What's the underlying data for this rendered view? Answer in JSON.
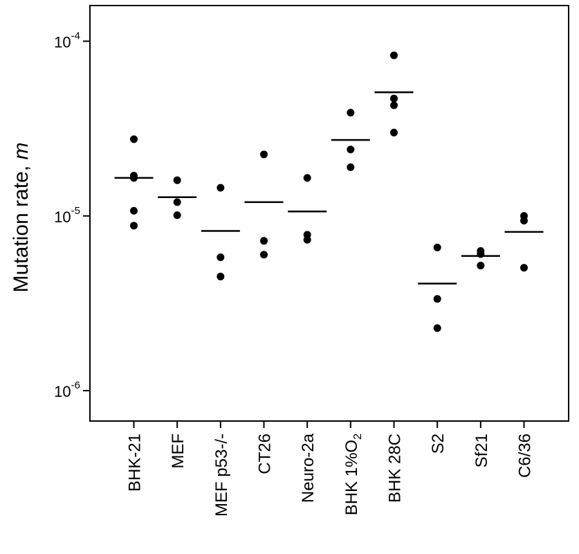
{
  "chart_data": {
    "type": "scatter",
    "yscale": "log",
    "ylim": [
      6.7e-07,
      0.00016
    ],
    "ylabel": {
      "text": "Mutation rate, ",
      "italic_part": "m"
    },
    "y_ticks": [
      {
        "value": 1e-06,
        "base": "10",
        "exp": "-6"
      },
      {
        "value": 1e-05,
        "base": "10",
        "exp": "-5"
      },
      {
        "value": 0.0001,
        "base": "10",
        "exp": "-4"
      }
    ],
    "categories": [
      {
        "label": "BHK-21",
        "points": [
          2.75e-05,
          1.7e-05,
          1.65e-05,
          1.07e-05,
          8.8e-06
        ],
        "mean": 1.65e-05
      },
      {
        "label": "MEF",
        "points": [
          1.6e-05,
          1.2e-05,
          1.01e-05
        ],
        "mean": 1.28e-05
      },
      {
        "label": "MEF p53-/-",
        "points": [
          1.45e-05,
          5.8e-06,
          4.5e-06
        ],
        "mean": 8.2e-06
      },
      {
        "label": "CT26",
        "points": [
          2.25e-05,
          7.2e-06,
          6e-06
        ],
        "mean": 1.2e-05
      },
      {
        "label": "Neuro-2a",
        "points": [
          1.65e-05,
          7.8e-06,
          7.3e-06
        ],
        "mean": 1.06e-05
      },
      {
        "label": "BHK 1%O",
        "label_sub": "2",
        "points": [
          3.9e-05,
          2.4e-05,
          1.9e-05
        ],
        "mean": 2.72e-05
      },
      {
        "label": "BHK 28C",
        "points": [
          8.3e-05,
          4.7e-05,
          4.3e-05,
          3e-05
        ],
        "mean": 5.1e-05
      },
      {
        "label": "S2",
        "points": [
          6.6e-06,
          3.35e-06,
          2.28e-06
        ],
        "mean": 4.1e-06
      },
      {
        "label": "Sf21",
        "points": [
          6.3e-06,
          6.05e-06,
          5.2e-06
        ],
        "mean": 5.9e-06
      },
      {
        "label": "C6/36",
        "points": [
          1e-05,
          9.4e-06,
          5.05e-06
        ],
        "mean": 8.1e-06
      }
    ],
    "grid": false,
    "point_color": "#000000",
    "mean_line_color": "#000000"
  }
}
